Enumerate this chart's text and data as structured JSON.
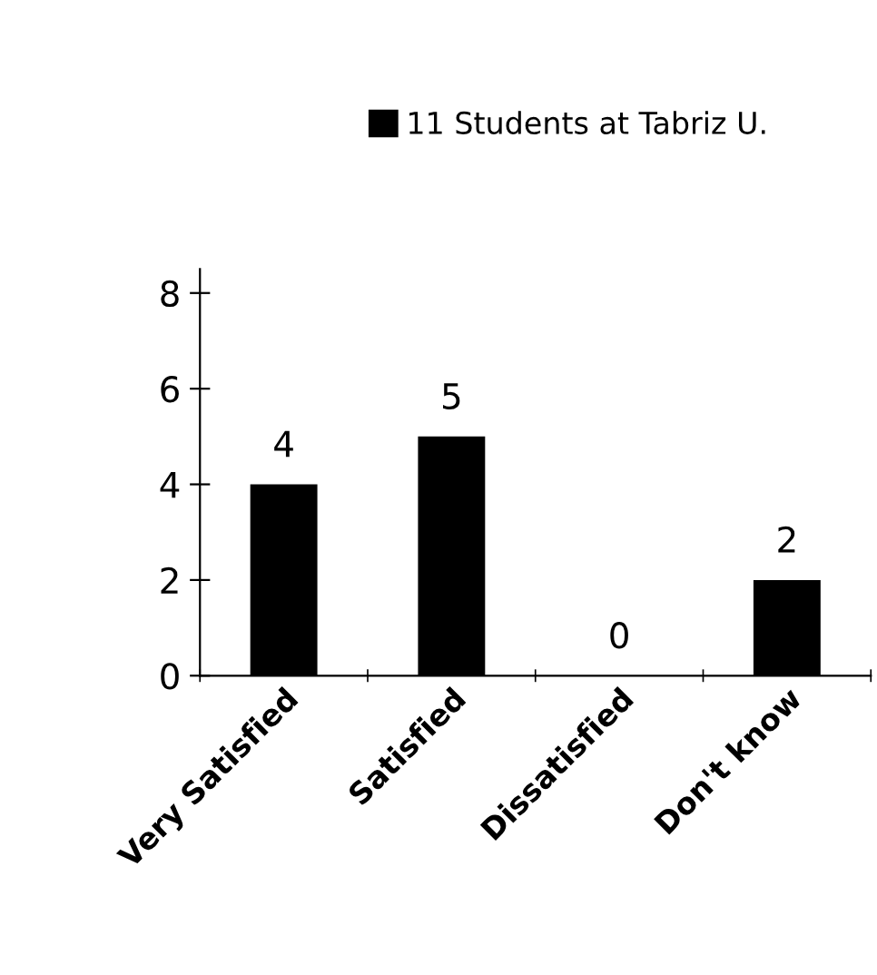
{
  "chart_data": {
    "type": "bar",
    "categories": [
      "Very Satisfied",
      "Satisfied",
      "Dissatisfied",
      "Don't know"
    ],
    "series": [
      {
        "name": "11 Students at Tabriz U.",
        "color": "#000000",
        "values": [
          4,
          5,
          0,
          2
        ]
      }
    ],
    "ylim": [
      0,
      8.5
    ],
    "yticks": [
      0,
      2,
      4,
      6,
      8
    ],
    "data_labels": true,
    "grid": false,
    "legend": "top"
  }
}
